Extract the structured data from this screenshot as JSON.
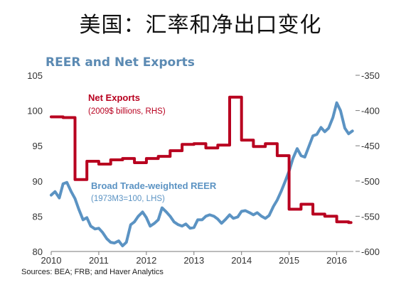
{
  "slide": {
    "title": "美国：汇率和净出口变化"
  },
  "colors": {
    "reer": "#5b93c3",
    "net_exports": "#b8001f",
    "chart_title": "#5b8ab3",
    "axis": "#7a7a7a"
  },
  "chart_data": {
    "type": "line",
    "title": "REER and Net Exports",
    "source": "Sources: BEA; FRB; and Haver Analytics",
    "x_ticks": [
      "2010",
      "2011",
      "2012",
      "2013",
      "2014",
      "2015",
      "2016"
    ],
    "xlim": [
      2010.0,
      2016.35
    ],
    "y_left": {
      "ticks": [
        "105",
        "100",
        "95",
        "90",
        "85",
        "80"
      ],
      "ylim": [
        80,
        105
      ]
    },
    "y_right": {
      "ticks": [
        "-350",
        "-400",
        "-450",
        "-500",
        "-550",
        "-600"
      ],
      "ylim": [
        -600,
        -350
      ]
    },
    "grid": false,
    "legend": "inline labels",
    "series": [
      {
        "name": "Broad Trade-weighted REER",
        "note": "(1973M3=100, LHS)",
        "axis": "left",
        "points": [
          [
            2010.0,
            88.0
          ],
          [
            2010.08,
            88.5
          ],
          [
            2010.17,
            87.6
          ],
          [
            2010.25,
            89.6
          ],
          [
            2010.33,
            89.8
          ],
          [
            2010.42,
            88.5
          ],
          [
            2010.5,
            87.5
          ],
          [
            2010.58,
            86.0
          ],
          [
            2010.67,
            84.5
          ],
          [
            2010.75,
            84.8
          ],
          [
            2010.83,
            83.6
          ],
          [
            2010.92,
            83.2
          ],
          [
            2011.0,
            83.3
          ],
          [
            2011.08,
            82.7
          ],
          [
            2011.17,
            81.8
          ],
          [
            2011.25,
            81.3
          ],
          [
            2011.33,
            81.2
          ],
          [
            2011.42,
            81.5
          ],
          [
            2011.5,
            80.8
          ],
          [
            2011.58,
            81.3
          ],
          [
            2011.67,
            83.8
          ],
          [
            2011.75,
            84.2
          ],
          [
            2011.83,
            85.0
          ],
          [
            2011.92,
            85.6
          ],
          [
            2012.0,
            84.8
          ],
          [
            2012.08,
            83.6
          ],
          [
            2012.17,
            84.0
          ],
          [
            2012.25,
            84.5
          ],
          [
            2012.33,
            86.2
          ],
          [
            2012.42,
            85.6
          ],
          [
            2012.5,
            85.0
          ],
          [
            2012.58,
            84.2
          ],
          [
            2012.67,
            83.8
          ],
          [
            2012.75,
            83.6
          ],
          [
            2012.83,
            83.9
          ],
          [
            2012.92,
            83.3
          ],
          [
            2013.0,
            83.4
          ],
          [
            2013.08,
            84.5
          ],
          [
            2013.17,
            84.5
          ],
          [
            2013.25,
            85.0
          ],
          [
            2013.33,
            85.2
          ],
          [
            2013.42,
            85.0
          ],
          [
            2013.5,
            84.6
          ],
          [
            2013.58,
            84.0
          ],
          [
            2013.67,
            84.6
          ],
          [
            2013.75,
            85.2
          ],
          [
            2013.83,
            84.7
          ],
          [
            2013.92,
            84.9
          ],
          [
            2014.0,
            85.7
          ],
          [
            2014.08,
            85.8
          ],
          [
            2014.17,
            85.5
          ],
          [
            2014.25,
            85.2
          ],
          [
            2014.33,
            85.5
          ],
          [
            2014.42,
            85.0
          ],
          [
            2014.5,
            84.7
          ],
          [
            2014.58,
            85.1
          ],
          [
            2014.67,
            86.4
          ],
          [
            2014.75,
            87.3
          ],
          [
            2014.83,
            88.5
          ],
          [
            2014.92,
            90.0
          ],
          [
            2015.0,
            91.4
          ],
          [
            2015.08,
            93.2
          ],
          [
            2015.17,
            94.6
          ],
          [
            2015.25,
            93.6
          ],
          [
            2015.33,
            93.4
          ],
          [
            2015.42,
            95.0
          ],
          [
            2015.5,
            96.4
          ],
          [
            2015.58,
            96.6
          ],
          [
            2015.67,
            97.6
          ],
          [
            2015.75,
            97.0
          ],
          [
            2015.83,
            97.5
          ],
          [
            2015.92,
            99.0
          ],
          [
            2016.0,
            101.1
          ],
          [
            2016.08,
            100.0
          ],
          [
            2016.17,
            97.5
          ],
          [
            2016.25,
            96.7
          ],
          [
            2016.33,
            97.1
          ]
        ]
      },
      {
        "name": "Net Exports",
        "note": "(2009$ billions, RHS)",
        "axis": "right",
        "points": [
          [
            2010.0,
            -409
          ],
          [
            2010.25,
            -410
          ],
          [
            2010.5,
            -498
          ],
          [
            2010.75,
            -472
          ],
          [
            2011.0,
            -476
          ],
          [
            2011.25,
            -470
          ],
          [
            2011.5,
            -468
          ],
          [
            2011.75,
            -474
          ],
          [
            2012.0,
            -468
          ],
          [
            2012.25,
            -465
          ],
          [
            2012.5,
            -457
          ],
          [
            2012.75,
            -448
          ],
          [
            2013.0,
            -447
          ],
          [
            2013.25,
            -453
          ],
          [
            2013.5,
            -449
          ],
          [
            2013.75,
            -381
          ],
          [
            2014.0,
            -442
          ],
          [
            2014.25,
            -451
          ],
          [
            2014.5,
            -447
          ],
          [
            2014.75,
            -464
          ],
          [
            2015.0,
            -540
          ],
          [
            2015.25,
            -533
          ],
          [
            2015.5,
            -547
          ],
          [
            2015.75,
            -550
          ],
          [
            2016.0,
            -558
          ],
          [
            2016.25,
            -559
          ]
        ]
      }
    ]
  }
}
